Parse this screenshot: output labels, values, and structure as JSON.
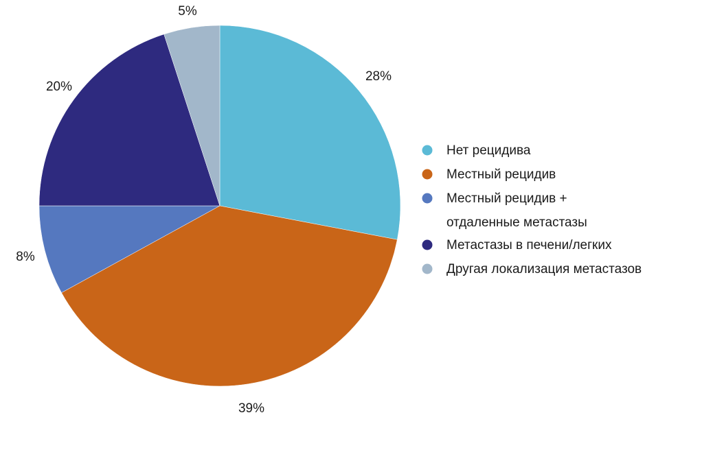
{
  "chart_data": {
    "type": "pie",
    "slices": [
      {
        "label": "Нет рецидива",
        "value": 28,
        "display": "28%",
        "color": "#5bbad6"
      },
      {
        "label": "Местный рецидив",
        "value": 39,
        "display": "39%",
        "color": "#c96518"
      },
      {
        "label": "Местный рецидив + отдаленные метастазы",
        "legend_lines": [
          "Местный рецидив +",
          "отдаленные метастазы"
        ],
        "value": 8,
        "display": "8%",
        "color": "#5578bf"
      },
      {
        "label": "Метастазы в печени/легких",
        "value": 20,
        "display": "20%",
        "color": "#2e2a7f"
      },
      {
        "label": "Другая локализация метастазов",
        "value": 5,
        "display": "5%",
        "color": "#a2b7ca"
      }
    ],
    "start": "12 o'clock",
    "direction": "clockwise",
    "legend_position": "right"
  }
}
